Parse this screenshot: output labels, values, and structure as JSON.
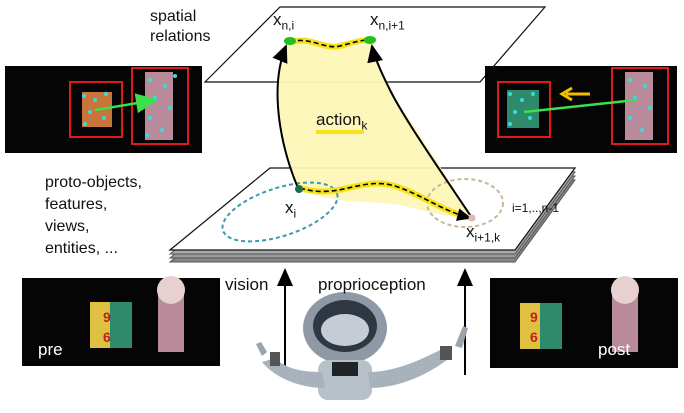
{
  "top_plane": {
    "title_line1": "spatial",
    "title_line2": "relations",
    "node_a": "x",
    "node_a_sub": "n,i",
    "node_b": "x",
    "node_b_sub": "n,i+1"
  },
  "action": {
    "label": "action",
    "subscript": "k"
  },
  "bottom_plane": {
    "list_lines": [
      "proto-objects,",
      "features,",
      "views,",
      "entities, ..."
    ],
    "node_start": "x",
    "node_start_sub": "i",
    "node_end": "x",
    "node_end_sub": "i+1,k",
    "index_range": "i=1,..,n-1"
  },
  "inputs": {
    "vision": "vision",
    "proprioception": "proprioception"
  },
  "photos": {
    "pre": "pre",
    "post": "post"
  },
  "colors": {
    "action_fill": "#fdf7b8",
    "path_highlight": "#f5e21a",
    "node_green": "#22c01e",
    "node_dark": "#1d6b50",
    "ellipse_teal": "#3a9ab0",
    "ellipse_tan": "#c9b896",
    "box_red": "#e01a1a",
    "arrow_green": "#3be04a",
    "arrow_yellow": "#f2c000"
  }
}
